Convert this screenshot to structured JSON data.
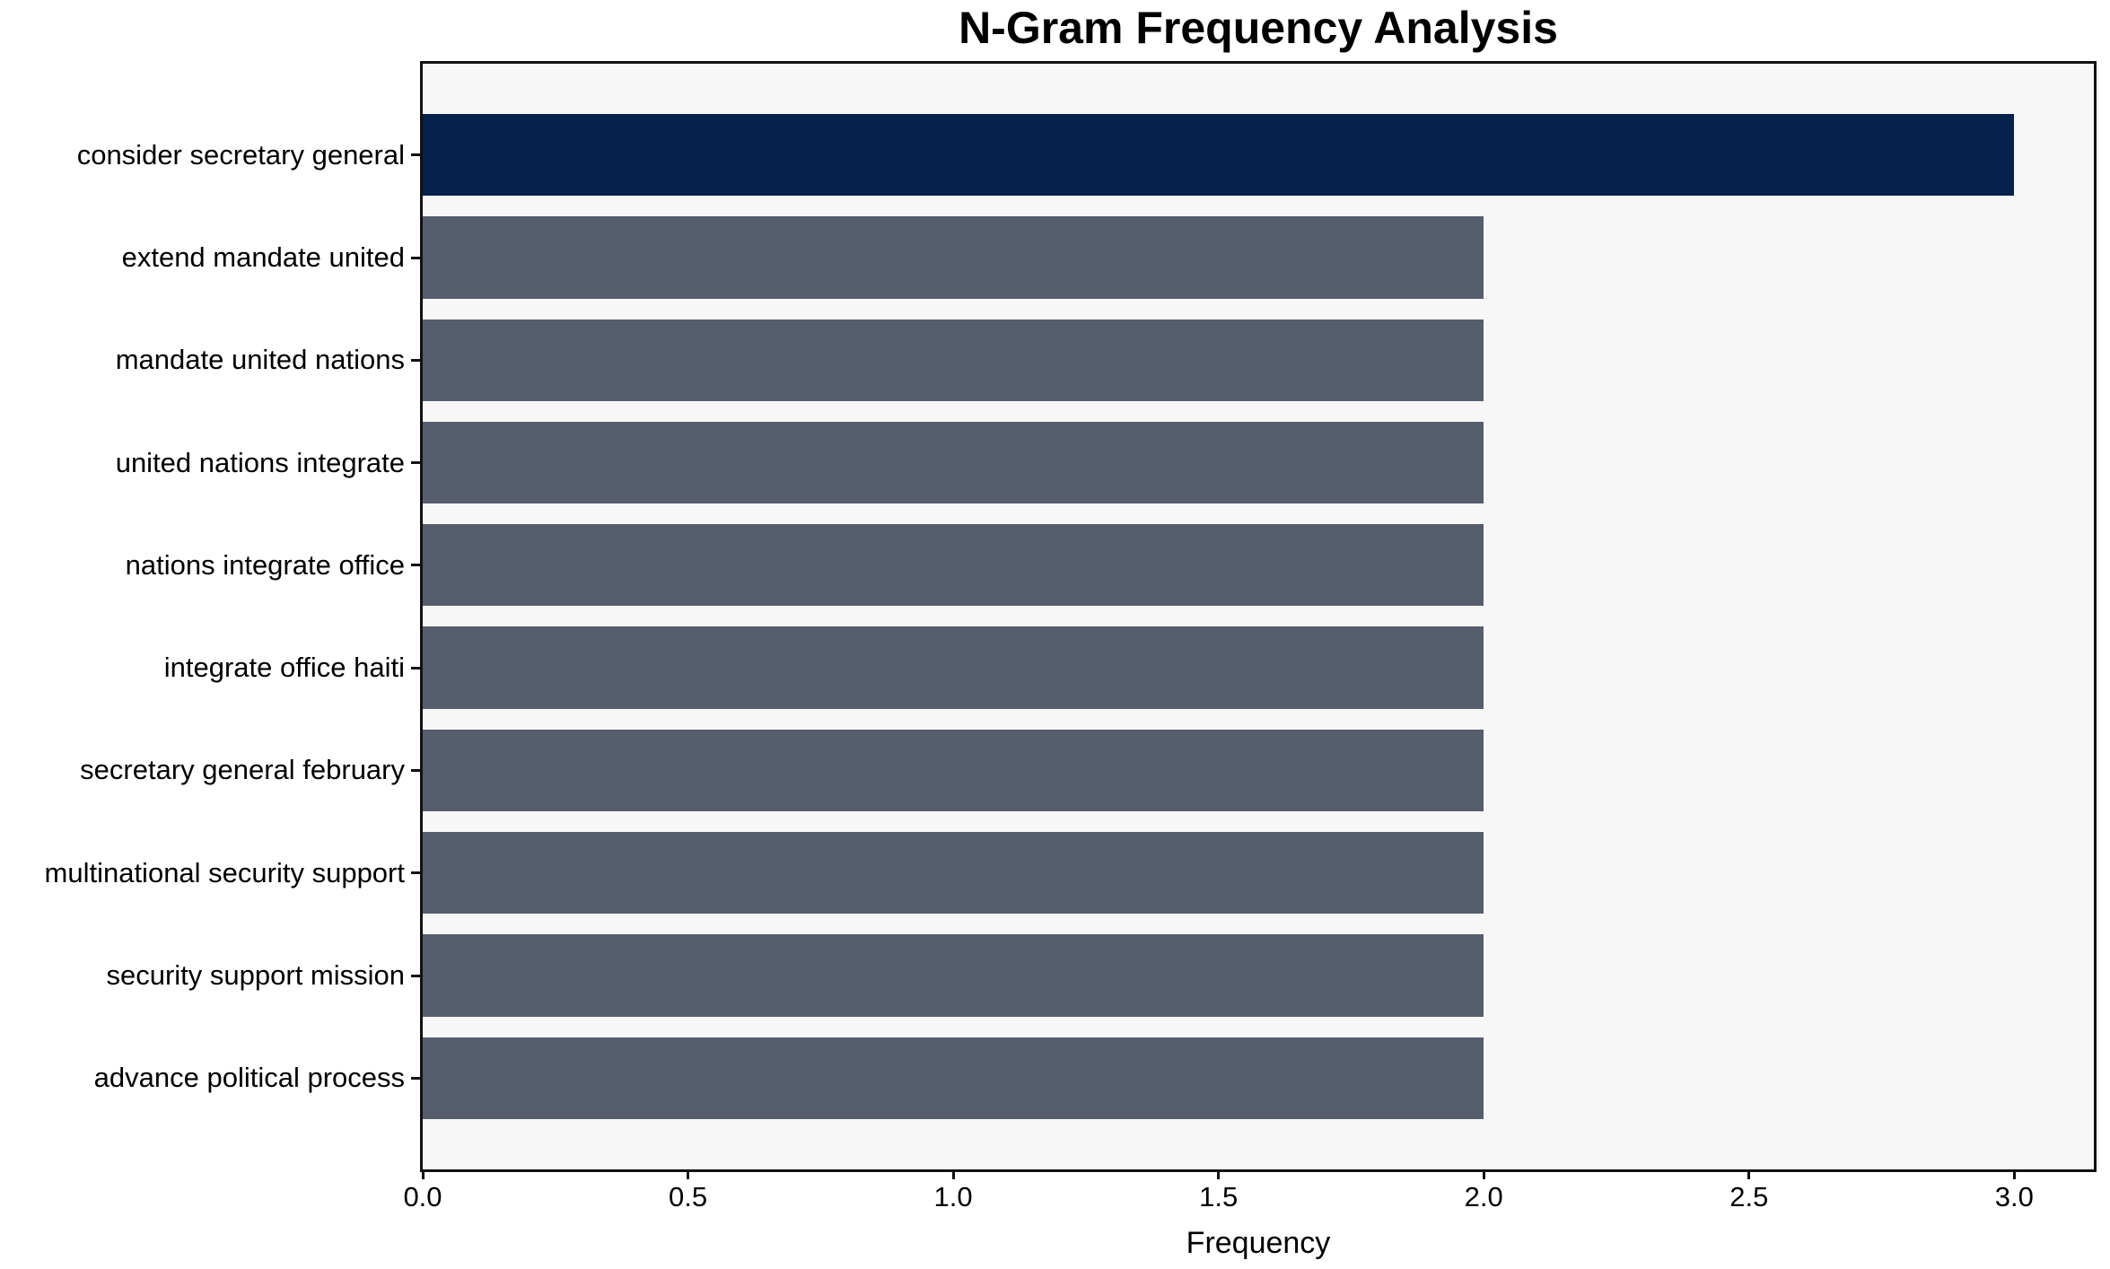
{
  "chart_data": {
    "type": "bar",
    "orientation": "horizontal",
    "title": "N-Gram Frequency Analysis",
    "xlabel": "Frequency",
    "ylabel": "",
    "categories": [
      "consider secretary general",
      "extend mandate united",
      "mandate united nations",
      "united nations integrate",
      "nations integrate office",
      "integrate office haiti",
      "secretary general february",
      "multinational security support",
      "security support mission",
      "advance political process"
    ],
    "values": [
      3,
      2,
      2,
      2,
      2,
      2,
      2,
      2,
      2,
      2
    ],
    "bar_colors": [
      "#06214b",
      "#565d6c",
      "#565d6c",
      "#565d6c",
      "#565d6c",
      "#565d6c",
      "#565d6c",
      "#565d6c",
      "#565d6c",
      "#565d6c"
    ],
    "xlim": [
      0,
      3.15
    ],
    "xticks": [
      0.0,
      0.5,
      1.0,
      1.5,
      2.0,
      2.5,
      3.0
    ],
    "xtick_labels": [
      "0.0",
      "0.5",
      "1.0",
      "1.5",
      "2.0",
      "2.5",
      "3.0"
    ],
    "grid": false,
    "legend": "none",
    "colors": {
      "bar_highlight": "#06214b",
      "bar_default": "#565d6c",
      "plot_background": "#f7f7f8",
      "figure_background": "#ffffff",
      "axis": "#111111",
      "text": "#000000"
    }
  }
}
